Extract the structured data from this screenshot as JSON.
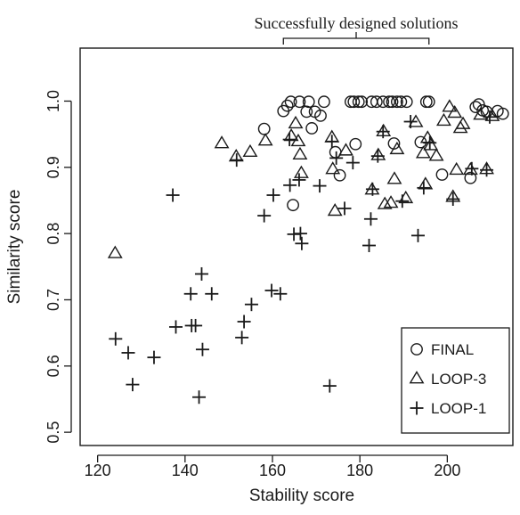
{
  "chart_data": {
    "type": "scatter",
    "annotation": "Successfully designed solutions",
    "xlabel": "Stability score",
    "ylabel": "Similarity score",
    "xlim": [
      116,
      215
    ],
    "ylim": [
      0.48,
      1.08
    ],
    "x_ticks": [
      120,
      140,
      160,
      180,
      200
    ],
    "y_ticks": [
      0.5,
      0.6,
      0.7,
      0.8,
      0.9,
      1.0
    ],
    "x_tick_labels": [
      "120",
      "140",
      "160",
      "180",
      "200"
    ],
    "y_tick_labels": [
      "0.5",
      "0.6",
      "0.7",
      "0.8",
      "0.9",
      "1.0"
    ],
    "bracket_range": [
      162.5,
      195.8
    ],
    "grid": false,
    "legend_position": "bottom-right",
    "series": [
      {
        "name": "FINAL",
        "marker": "circle",
        "points": [
          [
            158.1,
            0.958
          ],
          [
            162.5,
            0.985
          ],
          [
            163.4,
            0.993
          ],
          [
            164.2,
            0.999
          ],
          [
            164.7,
            0.843
          ],
          [
            166.2,
            0.999
          ],
          [
            167.8,
            0.984
          ],
          [
            168.3,
            0.999
          ],
          [
            169.0,
            0.959
          ],
          [
            169.7,
            0.984
          ],
          [
            171.0,
            0.978
          ],
          [
            171.8,
            0.999
          ],
          [
            174.4,
            0.923
          ],
          [
            175.4,
            0.888
          ],
          [
            177.9,
            0.999
          ],
          [
            178.6,
            0.999
          ],
          [
            179.0,
            0.935
          ],
          [
            179.7,
            0.999
          ],
          [
            180.4,
            0.999
          ],
          [
            182.7,
            0.999
          ],
          [
            183.8,
            0.999
          ],
          [
            185.3,
            0.999
          ],
          [
            186.7,
            0.999
          ],
          [
            187.4,
            0.999
          ],
          [
            187.8,
            0.936
          ],
          [
            188.5,
            0.999
          ],
          [
            189.4,
            0.999
          ],
          [
            190.7,
            0.999
          ],
          [
            193.9,
            0.938
          ],
          [
            195.2,
            0.999
          ],
          [
            195.8,
            0.999
          ],
          [
            198.8,
            0.889
          ],
          [
            205.3,
            0.884
          ],
          [
            206.5,
            0.991
          ],
          [
            207.2,
            0.995
          ],
          [
            208.1,
            0.986
          ],
          [
            209.0,
            0.984
          ],
          [
            211.5,
            0.985
          ],
          [
            212.7,
            0.981
          ]
        ]
      },
      {
        "name": "LOOP-3",
        "marker": "triangle",
        "points": [
          [
            124.0,
            0.77
          ],
          [
            148.4,
            0.936
          ],
          [
            151.7,
            0.916
          ],
          [
            154.9,
            0.923
          ],
          [
            158.4,
            0.94
          ],
          [
            164.3,
            0.947
          ],
          [
            165.3,
            0.966
          ],
          [
            165.9,
            0.939
          ],
          [
            166.3,
            0.919
          ],
          [
            166.6,
            0.891
          ],
          [
            173.6,
            0.945
          ],
          [
            173.8,
            0.897
          ],
          [
            174.3,
            0.834
          ],
          [
            176.8,
            0.925
          ],
          [
            182.8,
            0.866
          ],
          [
            184.2,
            0.918
          ],
          [
            185.4,
            0.954
          ],
          [
            185.7,
            0.844
          ],
          [
            187.1,
            0.846
          ],
          [
            187.9,
            0.882
          ],
          [
            188.5,
            0.927
          ],
          [
            190.5,
            0.853
          ],
          [
            192.8,
            0.968
          ],
          [
            194.5,
            0.921
          ],
          [
            195.0,
            0.874
          ],
          [
            195.5,
            0.944
          ],
          [
            196.2,
            0.933
          ],
          [
            197.5,
            0.917
          ],
          [
            199.2,
            0.97
          ],
          [
            200.5,
            0.991
          ],
          [
            201.3,
            0.855
          ],
          [
            201.7,
            0.982
          ],
          [
            202.1,
            0.896
          ],
          [
            203.0,
            0.959
          ],
          [
            203.6,
            0.965
          ],
          [
            205.3,
            0.896
          ],
          [
            207.6,
            0.979
          ],
          [
            209.0,
            0.897
          ],
          [
            210.3,
            0.977
          ]
        ]
      },
      {
        "name": "LOOP-1",
        "marker": "plus",
        "points": [
          [
            124.1,
            0.641
          ],
          [
            127.0,
            0.62
          ],
          [
            128.0,
            0.572
          ],
          [
            132.9,
            0.613
          ],
          [
            137.2,
            0.858
          ],
          [
            137.9,
            0.659
          ],
          [
            141.3,
            0.709
          ],
          [
            141.5,
            0.661
          ],
          [
            142.4,
            0.661
          ],
          [
            143.2,
            0.553
          ],
          [
            143.8,
            0.739
          ],
          [
            144.0,
            0.625
          ],
          [
            146.1,
            0.709
          ],
          [
            151.8,
            0.911
          ],
          [
            153.0,
            0.643
          ],
          [
            153.5,
            0.667
          ],
          [
            155.2,
            0.693
          ],
          [
            158.1,
            0.827
          ],
          [
            159.8,
            0.714
          ],
          [
            160.2,
            0.858
          ],
          [
            161.8,
            0.709
          ],
          [
            163.9,
            0.942
          ],
          [
            164.0,
            0.873
          ],
          [
            164.9,
            0.799
          ],
          [
            166.1,
            0.881
          ],
          [
            166.4,
            0.8
          ],
          [
            166.7,
            0.785
          ],
          [
            170.8,
            0.872
          ],
          [
            173.1,
            0.57
          ],
          [
            173.6,
            0.939
          ],
          [
            174.6,
            0.914
          ],
          [
            176.5,
            0.838
          ],
          [
            178.4,
            0.907
          ],
          [
            182.1,
            0.782
          ],
          [
            182.5,
            0.822
          ],
          [
            182.9,
            0.867
          ],
          [
            184.1,
            0.917
          ],
          [
            185.3,
            0.954
          ],
          [
            189.7,
            0.849
          ],
          [
            191.6,
            0.969
          ],
          [
            193.3,
            0.797
          ],
          [
            194.6,
            0.869
          ],
          [
            196.0,
            0.937
          ],
          [
            201.3,
            0.852
          ],
          [
            205.6,
            0.898
          ],
          [
            209.0,
            0.896
          ],
          [
            209.7,
            0.976
          ]
        ]
      }
    ]
  }
}
